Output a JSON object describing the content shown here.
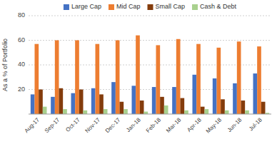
{
  "chart_data": {
    "type": "bar",
    "categories": [
      "Aug-17",
      "Sep-17",
      "Oct-17",
      "Nov-17",
      "Dec-17",
      "Jan-18",
      "Feb-18",
      "Mar-18",
      "Apr-18",
      "May-18",
      "Jun-18",
      "Jul-18"
    ],
    "series": [
      {
        "name": "Large Cap",
        "color": "#4472c4",
        "values": [
          16,
          14,
          17,
          21,
          26,
          23,
          22,
          22,
          32,
          29,
          25,
          33
        ]
      },
      {
        "name": "Mid Cap",
        "color": "#ed7d31",
        "values": [
          57,
          60,
          60,
          57,
          60,
          64,
          56,
          61,
          57,
          54,
          59,
          55
        ]
      },
      {
        "name": "Small Cap",
        "color": "#843c0c",
        "values": [
          20,
          21,
          20,
          16,
          10,
          11,
          14,
          13,
          6,
          12,
          11,
          10
        ]
      },
      {
        "name": "Cash & Debt",
        "color": "#a9d18e",
        "values": [
          6,
          4,
          3,
          4,
          4,
          2,
          7,
          3,
          4,
          3,
          3,
          1
        ]
      }
    ],
    "ylabel": "As a % of Portfolio",
    "ylim": [
      0,
      80
    ],
    "yticks": [
      20,
      40,
      60,
      80
    ],
    "grid": true,
    "legend": "top"
  }
}
